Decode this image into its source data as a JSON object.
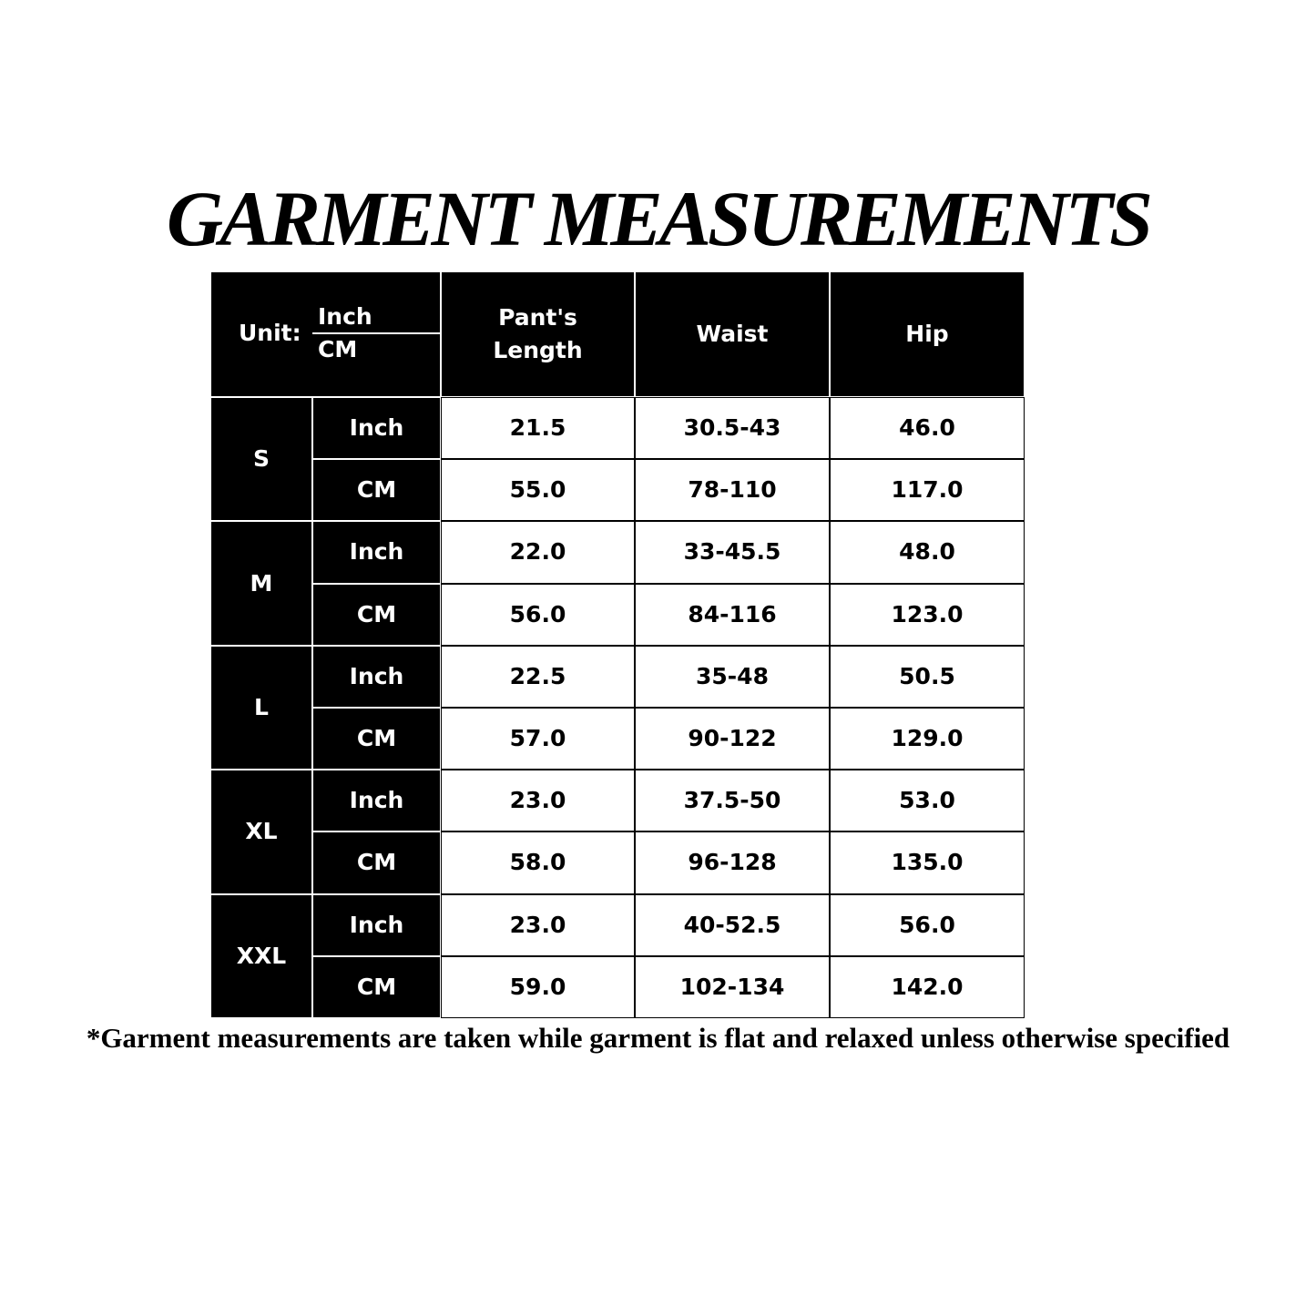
{
  "title": "GARMENT MEASUREMENTS",
  "table": {
    "unit_label": "Unit:",
    "unit_top": "Inch",
    "unit_bottom": "CM",
    "columns": [
      "Pant's Length",
      "Waist",
      "Hip"
    ],
    "sizes": [
      {
        "size": "S",
        "rows": [
          {
            "unit": "Inch",
            "values": [
              "21.5",
              "30.5-43",
              "46.0"
            ]
          },
          {
            "unit": "CM",
            "values": [
              "55.0",
              "78-110",
              "117.0"
            ]
          }
        ]
      },
      {
        "size": "M",
        "rows": [
          {
            "unit": "Inch",
            "values": [
              "22.0",
              "33-45.5",
              "48.0"
            ]
          },
          {
            "unit": "CM",
            "values": [
              "56.0",
              "84-116",
              "123.0"
            ]
          }
        ]
      },
      {
        "size": "L",
        "rows": [
          {
            "unit": "Inch",
            "values": [
              "22.5",
              "35-48",
              "50.5"
            ]
          },
          {
            "unit": "CM",
            "values": [
              "57.0",
              "90-122",
              "129.0"
            ]
          }
        ]
      },
      {
        "size": "XL",
        "rows": [
          {
            "unit": "Inch",
            "values": [
              "23.0",
              "37.5-50",
              "53.0"
            ]
          },
          {
            "unit": "CM",
            "values": [
              "58.0",
              "96-128",
              "135.0"
            ]
          }
        ]
      },
      {
        "size": "XXL",
        "rows": [
          {
            "unit": "Inch",
            "values": [
              "23.0",
              "40-52.5",
              "56.0"
            ]
          },
          {
            "unit": "CM",
            "values": [
              "59.0",
              "102-134",
              "142.0"
            ]
          }
        ]
      }
    ]
  },
  "footnote": "*Garment measurements are taken while garment is flat and relaxed unless otherwise specified"
}
